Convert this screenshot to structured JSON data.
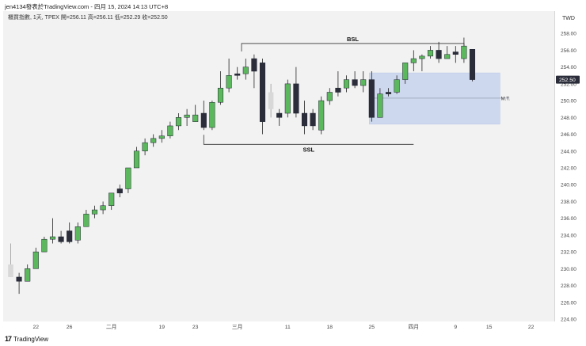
{
  "header": {
    "top": "jen4134發表於TradingView.com - 四月 15, 2024 14:13 UTC+8",
    "symbol": "櫃買指數, 1天, TPEX  開=256.11  高=256.11  低=252.29  收=252.50"
  },
  "currency": "TWD",
  "footer": {
    "logo": "17",
    "brand": "TradingView"
  },
  "colors": {
    "up": "#5cb85c",
    "down": "#2b2d3a",
    "neutral": "#d8d8d8",
    "zone": "#c9d6ee",
    "zone_border": "#b8c8e6",
    "price_tag": "#2b2d3a"
  },
  "chart_data": {
    "type": "candlestick",
    "ylim": [
      224,
      260
    ],
    "yticks": [
      224,
      226,
      228,
      230,
      232,
      234,
      236,
      238,
      240,
      242,
      244,
      246,
      248,
      250,
      252,
      254,
      256,
      258
    ],
    "xticks": [
      {
        "label": "22",
        "i": 3
      },
      {
        "label": "26",
        "i": 7
      },
      {
        "label": "二月",
        "i": 12
      },
      {
        "label": "19",
        "i": 18
      },
      {
        "label": "23",
        "i": 22
      },
      {
        "label": "三月",
        "i": 27
      },
      {
        "label": "11",
        "i": 33
      },
      {
        "label": "18",
        "i": 38
      },
      {
        "label": "25",
        "i": 43
      },
      {
        "label": "四月",
        "i": 48
      },
      {
        "label": "9",
        "i": 53
      },
      {
        "label": "15",
        "i": 57
      },
      {
        "label": "22",
        "i": 62
      }
    ],
    "candles": [
      {
        "o": 230.5,
        "h": 233.0,
        "l": 229.0,
        "c": 229.0,
        "k": "neutral"
      },
      {
        "o": 229.0,
        "h": 229.5,
        "l": 227.0,
        "c": 228.5,
        "k": "down"
      },
      {
        "o": 228.5,
        "h": 230.5,
        "l": 228.5,
        "c": 230.0,
        "k": "up"
      },
      {
        "o": 230.0,
        "h": 232.5,
        "l": 230.0,
        "c": 232.0,
        "k": "up"
      },
      {
        "o": 232.0,
        "h": 233.8,
        "l": 232.0,
        "c": 233.5,
        "k": "up"
      },
      {
        "o": 233.5,
        "h": 236.0,
        "l": 233.0,
        "c": 233.8,
        "k": "up"
      },
      {
        "o": 233.8,
        "h": 234.5,
        "l": 233.0,
        "c": 233.2,
        "k": "down"
      },
      {
        "o": 233.2,
        "h": 235.5,
        "l": 233.0,
        "c": 234.5,
        "k": "down"
      },
      {
        "o": 233.4,
        "h": 235.5,
        "l": 233.0,
        "c": 235.0,
        "k": "up"
      },
      {
        "o": 235.0,
        "h": 237.0,
        "l": 235.0,
        "c": 236.5,
        "k": "up"
      },
      {
        "o": 236.5,
        "h": 237.5,
        "l": 236.0,
        "c": 237.0,
        "k": "up"
      },
      {
        "o": 237.0,
        "h": 238.0,
        "l": 236.5,
        "c": 237.5,
        "k": "up"
      },
      {
        "o": 237.5,
        "h": 239.0,
        "l": 237.0,
        "c": 239.0,
        "k": "up"
      },
      {
        "o": 239.0,
        "h": 240.0,
        "l": 238.5,
        "c": 239.5,
        "k": "down"
      },
      {
        "o": 239.5,
        "h": 242.0,
        "l": 239.0,
        "c": 242.0,
        "k": "up"
      },
      {
        "o": 242.0,
        "h": 244.5,
        "l": 242.0,
        "c": 244.0,
        "k": "up"
      },
      {
        "o": 244.0,
        "h": 245.5,
        "l": 243.5,
        "c": 245.0,
        "k": "up"
      },
      {
        "o": 245.0,
        "h": 246.0,
        "l": 244.5,
        "c": 245.5,
        "k": "up"
      },
      {
        "o": 245.5,
        "h": 246.5,
        "l": 245.0,
        "c": 245.8,
        "k": "up"
      },
      {
        "o": 245.8,
        "h": 247.5,
        "l": 245.5,
        "c": 247.0,
        "k": "up"
      },
      {
        "o": 247.0,
        "h": 248.5,
        "l": 246.5,
        "c": 248.0,
        "k": "up"
      },
      {
        "o": 248.0,
        "h": 249.0,
        "l": 247.0,
        "c": 248.3,
        "k": "up"
      },
      {
        "o": 248.3,
        "h": 249.5,
        "l": 247.5,
        "c": 247.5,
        "k": "up"
      },
      {
        "o": 248.5,
        "h": 250.0,
        "l": 246.5,
        "c": 246.8,
        "k": "down"
      },
      {
        "o": 246.8,
        "h": 250.0,
        "l": 246.5,
        "c": 249.8,
        "k": "up"
      },
      {
        "o": 249.8,
        "h": 253.5,
        "l": 249.5,
        "c": 251.5,
        "k": "up"
      },
      {
        "o": 251.5,
        "h": 255.0,
        "l": 251.0,
        "c": 253.0,
        "k": "up"
      },
      {
        "o": 253.0,
        "h": 254.0,
        "l": 252.5,
        "c": 253.2,
        "k": "down"
      },
      {
        "o": 253.2,
        "h": 255.0,
        "l": 252.5,
        "c": 254.0,
        "k": "up"
      },
      {
        "o": 255.0,
        "h": 255.5,
        "l": 251.5,
        "c": 253.5,
        "k": "down"
      },
      {
        "o": 254.5,
        "h": 255.0,
        "l": 246.0,
        "c": 247.5,
        "k": "down"
      },
      {
        "o": 249.0,
        "h": 252.0,
        "l": 248.0,
        "c": 251.0,
        "k": "neutral"
      },
      {
        "o": 248.0,
        "h": 249.0,
        "l": 247.0,
        "c": 248.5,
        "k": "down"
      },
      {
        "o": 248.5,
        "h": 252.5,
        "l": 248.0,
        "c": 252.0,
        "k": "up"
      },
      {
        "o": 252.0,
        "h": 254.0,
        "l": 248.0,
        "c": 248.5,
        "k": "down"
      },
      {
        "o": 248.5,
        "h": 250.0,
        "l": 246.0,
        "c": 247.0,
        "k": "down"
      },
      {
        "o": 247.0,
        "h": 249.0,
        "l": 246.5,
        "c": 248.5,
        "k": "down"
      },
      {
        "o": 246.5,
        "h": 250.5,
        "l": 246.0,
        "c": 250.0,
        "k": "up"
      },
      {
        "o": 250.0,
        "h": 251.5,
        "l": 249.5,
        "c": 251.0,
        "k": "up"
      },
      {
        "o": 251.0,
        "h": 253.5,
        "l": 250.5,
        "c": 251.5,
        "k": "down"
      },
      {
        "o": 251.5,
        "h": 253.0,
        "l": 251.0,
        "c": 252.5,
        "k": "up"
      },
      {
        "o": 252.5,
        "h": 253.5,
        "l": 251.5,
        "c": 251.8,
        "k": "down"
      },
      {
        "o": 251.8,
        "h": 253.5,
        "l": 251.0,
        "c": 252.5,
        "k": "up"
      },
      {
        "o": 252.5,
        "h": 253.5,
        "l": 247.5,
        "c": 248.0,
        "k": "down"
      },
      {
        "o": 248.0,
        "h": 251.5,
        "l": 248.0,
        "c": 250.8,
        "k": "up"
      },
      {
        "o": 250.8,
        "h": 251.5,
        "l": 250.5,
        "c": 251.0,
        "k": "down"
      },
      {
        "o": 251.0,
        "h": 253.0,
        "l": 250.8,
        "c": 252.5,
        "k": "up"
      },
      {
        "o": 252.5,
        "h": 254.5,
        "l": 252.0,
        "c": 254.5,
        "k": "up"
      },
      {
        "o": 254.5,
        "h": 256.0,
        "l": 253.5,
        "c": 255.0,
        "k": "up"
      },
      {
        "o": 255.0,
        "h": 255.5,
        "l": 253.5,
        "c": 255.3,
        "k": "up"
      },
      {
        "o": 255.3,
        "h": 256.5,
        "l": 255.0,
        "c": 256.0,
        "k": "up"
      },
      {
        "o": 256.0,
        "h": 257.0,
        "l": 254.5,
        "c": 255.0,
        "k": "down"
      },
      {
        "o": 255.0,
        "h": 256.5,
        "l": 255.0,
        "c": 255.5,
        "k": "up"
      },
      {
        "o": 255.5,
        "h": 256.5,
        "l": 254.5,
        "c": 255.8,
        "k": "down"
      },
      {
        "o": 255.0,
        "h": 257.5,
        "l": 254.5,
        "c": 256.5,
        "k": "up"
      },
      {
        "o": 256.11,
        "h": 256.11,
        "l": 252.29,
        "c": 252.5,
        "k": "down"
      }
    ],
    "last_price": {
      "value": "252.50",
      "y": 252.5
    },
    "annotations": [
      {
        "text": "BSL",
        "type": "bracket-top",
        "y": 256.8,
        "i_start": 27.5,
        "i_end": 54
      },
      {
        "text": "SSL",
        "type": "bracket-bottom",
        "y": 244.8,
        "i_start": 23,
        "i_end": 48
      },
      {
        "text": "M.T.",
        "type": "midline",
        "y": 250.3,
        "i_start": 43,
        "i_end": 58
      }
    ],
    "zone": {
      "y_top": 253.3,
      "y_bottom": 247.2,
      "i_start": 43,
      "i_end": 58
    }
  }
}
